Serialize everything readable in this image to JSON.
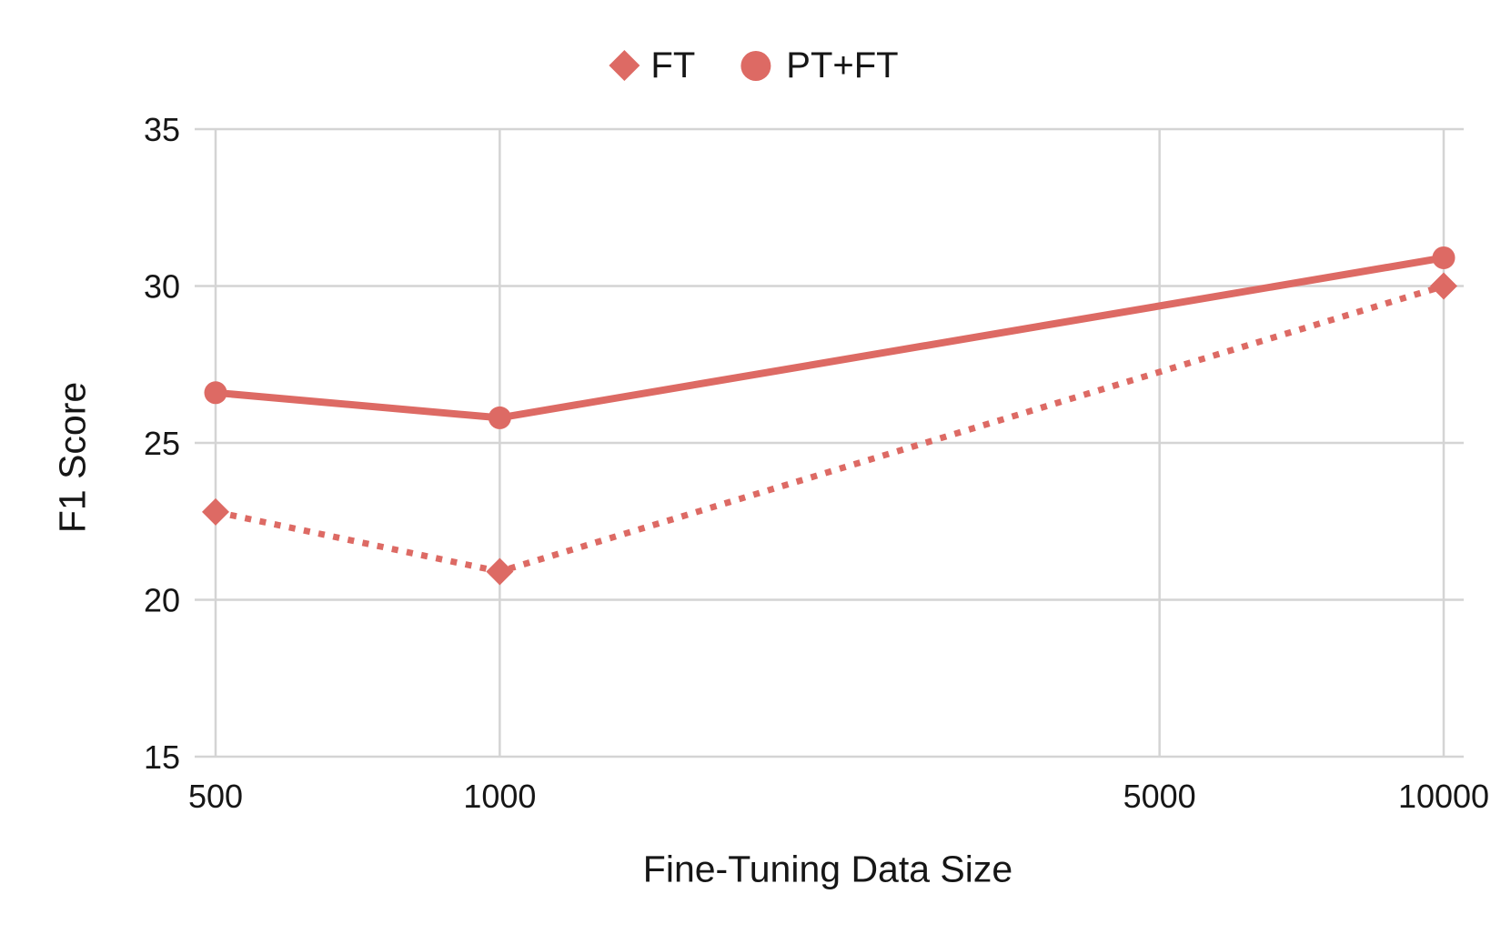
{
  "chart_data": {
    "type": "line",
    "title": "",
    "xlabel": "Fine-Tuning Data Size",
    "ylabel": "F1 Score",
    "x_scale": "log",
    "xlim": [
      500,
      10000
    ],
    "ylim": [
      15,
      35
    ],
    "x_ticks": [
      500,
      1000,
      5000,
      10000
    ],
    "y_ticks": [
      15,
      20,
      25,
      30,
      35
    ],
    "grid": true,
    "legend_position": "top-center",
    "series": [
      {
        "name": "FT",
        "marker": "diamond",
        "line_style": "dotted",
        "x": [
          500,
          1000,
          10000
        ],
        "values": [
          22.8,
          20.9,
          30.0
        ]
      },
      {
        "name": "PT+FT",
        "marker": "circle",
        "line_style": "solid",
        "x": [
          500,
          1000,
          10000
        ],
        "values": [
          26.6,
          25.8,
          30.9
        ]
      }
    ]
  },
  "colors": {
    "series": "#DD6A64",
    "gridline": "#D4D4D4",
    "text": "#161616"
  }
}
